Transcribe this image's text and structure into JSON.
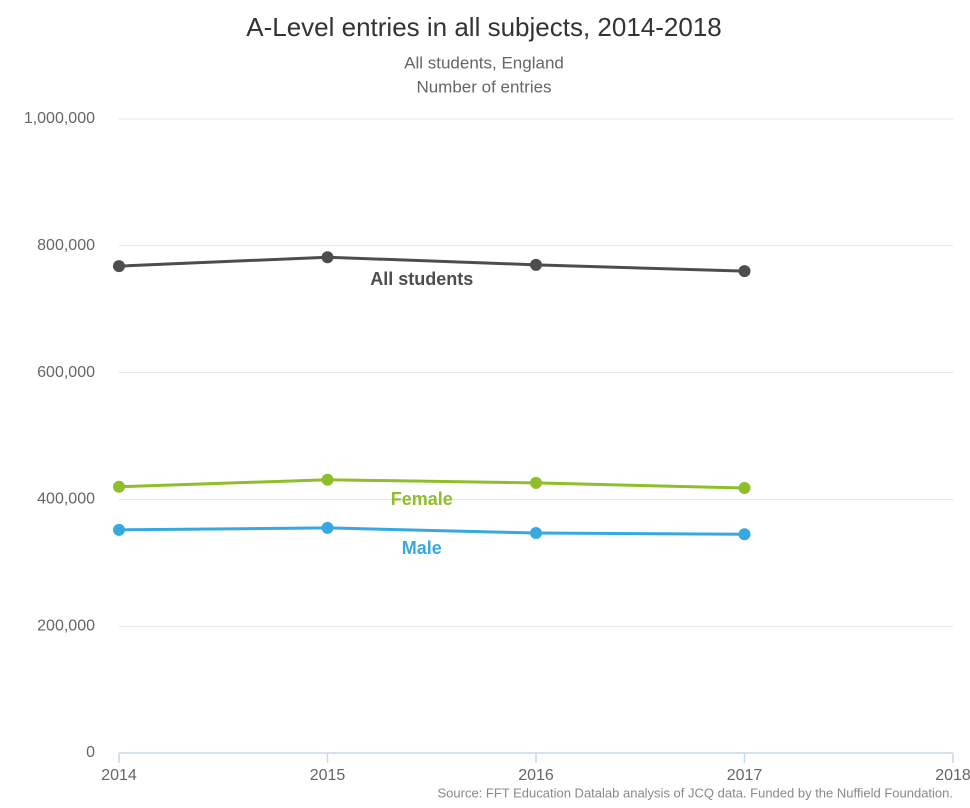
{
  "chart_data": {
    "type": "line",
    "title": "A-Level entries in all subjects, 2014-2018",
    "subtitle": [
      "All students, England",
      "Number of entries"
    ],
    "source": "Source: FFT Education Datalab analysis of JCQ data. Funded by the Nuffield Foundation.",
    "x": [
      2014,
      2015,
      2016,
      2017
    ],
    "xlim": [
      2014,
      2018
    ],
    "xticks": [
      2014,
      2015,
      2016,
      2017,
      2018
    ],
    "ylim": [
      0,
      1000000
    ],
    "yticks": [
      0,
      {
        "value": 200000,
        "label": "200,000"
      },
      {
        "value": 400000,
        "label": "400,000"
      },
      {
        "value": 600000,
        "label": "600,000"
      },
      {
        "value": 800000,
        "label": "800,000"
      },
      {
        "value": 1000000,
        "label": "1,000,000"
      }
    ],
    "grid": true,
    "series": [
      {
        "name": "All students",
        "color": "#4d4d4f",
        "values": [
          768000,
          782000,
          770000,
          760000
        ]
      },
      {
        "name": "Female",
        "color": "#8fbe2b",
        "values": [
          420000,
          431000,
          426000,
          418000
        ]
      },
      {
        "name": "Male",
        "color": "#36a9e1",
        "values": [
          352000,
          355000,
          347000,
          345000
        ]
      }
    ]
  }
}
